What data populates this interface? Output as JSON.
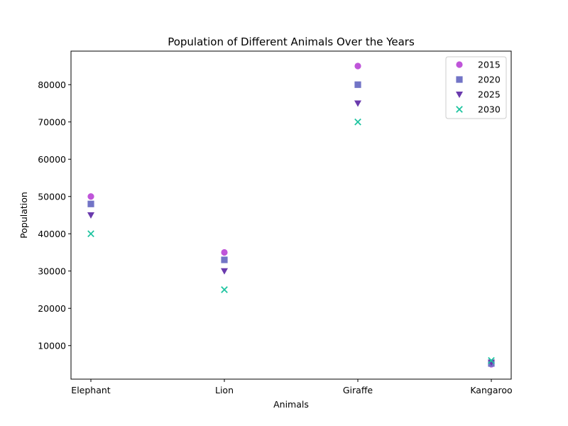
{
  "chart_data": {
    "type": "scatter",
    "title": "Population of Different Animals Over the Years",
    "xlabel": "Animals",
    "ylabel": "Population",
    "categories": [
      "Elephant",
      "Lion",
      "Giraffe",
      "Kangaroo"
    ],
    "ylim": [
      1000,
      89000
    ],
    "yticks": [
      10000,
      20000,
      30000,
      40000,
      50000,
      60000,
      70000,
      80000
    ],
    "grid": false,
    "legend_position": "top-right",
    "series": [
      {
        "name": "2015",
        "marker": "circle",
        "color": "#bf55d9",
        "values": [
          50000,
          35000,
          85000,
          5000
        ]
      },
      {
        "name": "2020",
        "marker": "square",
        "color": "#7274c6",
        "values": [
          48000,
          33000,
          80000,
          5200
        ]
      },
      {
        "name": "2025",
        "marker": "triangle-down",
        "color": "#6a3aad",
        "values": [
          45000,
          30000,
          75000,
          5500
        ]
      },
      {
        "name": "2030",
        "marker": "x",
        "color": "#1ec4a0",
        "values": [
          40000,
          25000,
          70000,
          6000
        ]
      }
    ]
  }
}
